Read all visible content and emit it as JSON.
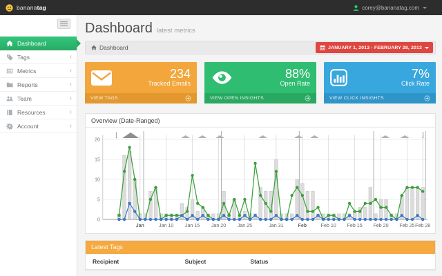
{
  "topbar": {
    "logo": {
      "normal": "banana",
      "bold": "tag"
    },
    "user_email": "corey@bananatag.com"
  },
  "sidebar": {
    "chevron": "‹",
    "items": [
      {
        "label": "Dashboard",
        "active": true
      },
      {
        "label": "Tags"
      },
      {
        "label": "Metrics"
      },
      {
        "label": "Reports"
      },
      {
        "label": "Team"
      },
      {
        "label": "Resources"
      },
      {
        "label": "Account"
      }
    ]
  },
  "page": {
    "title": "Dashboard",
    "subtitle": "latest metrics",
    "breadcrumb": "Dashboard",
    "date_range_button": "JANUARY 1, 2013 - FEBRUARY 28, 2013"
  },
  "cards": [
    {
      "value": "234",
      "label": "Tracked Emails",
      "footer_label": "VIEW TAGS",
      "color": "#F2A63C",
      "footer_color": "#E2982F"
    },
    {
      "value": "88%",
      "label": "Open Rate",
      "footer_label": "VIEW OPEN INSIGHTS",
      "color": "#2FBD71",
      "footer_color": "#29A862"
    },
    {
      "value": "7%",
      "label": "Click Rate",
      "footer_label": "VIEW CLICK INSIGHTS",
      "color": "#38A7DE",
      "footer_color": "#2F94C7"
    }
  ],
  "overview": {
    "title": "Overview (Date-Ranged)"
  },
  "chart_data": {
    "type": "bar",
    "subtype": "combo-bar-and-lines",
    "title": "Overview (Date-Ranged)",
    "x_range": [
      "Jan 1, 2013",
      "Feb 28, 2013"
    ],
    "n_points": 59,
    "ylim": [
      0,
      20
    ],
    "y_ticks": [
      0,
      5,
      10,
      15,
      20
    ],
    "grid": true,
    "legend_position": "none",
    "x_ticks": [
      {
        "index": 4,
        "label": "Jan",
        "bold": true
      },
      {
        "index": 9,
        "label": "Jan 10"
      },
      {
        "index": 14,
        "label": "Jan 15"
      },
      {
        "index": 19,
        "label": "Jan 20"
      },
      {
        "index": 24,
        "label": "Jan 25"
      },
      {
        "index": 30,
        "label": "Jan 31"
      },
      {
        "index": 35,
        "label": "Feb",
        "bold": true
      },
      {
        "index": 40,
        "label": "Feb 10"
      },
      {
        "index": 45,
        "label": "Feb 15"
      },
      {
        "index": 50,
        "label": "Feb 20"
      },
      {
        "index": 55,
        "label": "Feb 25"
      },
      {
        "index": 58,
        "label": "Feb 28"
      }
    ],
    "series": [
      {
        "name": "gray-bars",
        "type": "bar",
        "color": "#DCDCDC",
        "stroke": "#BEBEBE",
        "values": [
          0,
          16,
          17,
          10,
          0,
          0,
          7,
          8,
          0,
          0,
          0,
          0,
          4,
          3,
          5,
          2,
          3,
          0,
          0,
          0,
          7,
          0,
          5,
          0,
          2,
          0,
          0,
          8,
          7,
          7,
          15,
          0,
          0,
          0,
          10,
          9,
          7,
          7,
          0,
          0,
          0,
          0,
          0,
          0,
          0,
          2,
          3,
          3,
          8,
          0,
          5,
          5,
          0,
          0,
          6,
          8,
          8,
          8,
          8
        ]
      },
      {
        "name": "green-line",
        "type": "line",
        "color": "#3BA43B",
        "dot_stroke": "#2E8B2E",
        "values": [
          1,
          12,
          18,
          10,
          0,
          0,
          5,
          8,
          0,
          1,
          1,
          1,
          1,
          2,
          11,
          4,
          3,
          1,
          0,
          0,
          4,
          1,
          5,
          1,
          5,
          0,
          14,
          6,
          4,
          2,
          12,
          0,
          0,
          6,
          8,
          6,
          2,
          2,
          3,
          0,
          1,
          1,
          0,
          0,
          4,
          2,
          2,
          4,
          4,
          5,
          3,
          3,
          1,
          0,
          6,
          8,
          8,
          8,
          7
        ]
      },
      {
        "name": "blue-line",
        "type": "line",
        "color": "#3F7DD0",
        "dot_stroke": "#2F62A8",
        "values": [
          0,
          0,
          4,
          2,
          0,
          0,
          0,
          0,
          0,
          0,
          0,
          0,
          1,
          0,
          1,
          0,
          1,
          0,
          0,
          0,
          1,
          0,
          0,
          0,
          1,
          0,
          1,
          0,
          0,
          0,
          1,
          0,
          0,
          0,
          1,
          0,
          0,
          0,
          1,
          0,
          0,
          0,
          0,
          0,
          1,
          0,
          0,
          0,
          0,
          0,
          0,
          0,
          0,
          0,
          1,
          0,
          0,
          1,
          0
        ]
      }
    ],
    "decorations": {
      "bar_min_display": 1.4,
      "top_triangles": [
        {
          "f": 0.086,
          "size": "large"
        },
        {
          "f": 0.255
        },
        {
          "f": 0.307
        },
        {
          "f": 0.361
        },
        {
          "f": 0.493
        },
        {
          "f": 0.603
        },
        {
          "f": 0.652
        },
        {
          "f": 0.87
        },
        {
          "f": 0.93
        }
      ],
      "separators": [
        0.126,
        0.365,
        0.605,
        0.834,
        0.994
      ],
      "range_brackets": [
        0.042,
        0.986
      ]
    }
  },
  "latest_tags": {
    "title": "Latest Tags",
    "columns": [
      "Recipient",
      "Subject",
      "Status"
    ]
  },
  "colors": {
    "topbar": "#2D2D2D",
    "sidebar_active_green": "#2DBE70",
    "date_button_red": "#DE4740",
    "latest_tags_header_orange": "#F5A93F",
    "logo_yellow": "#F5C33B",
    "user_icon_green": "#2ECC71"
  }
}
